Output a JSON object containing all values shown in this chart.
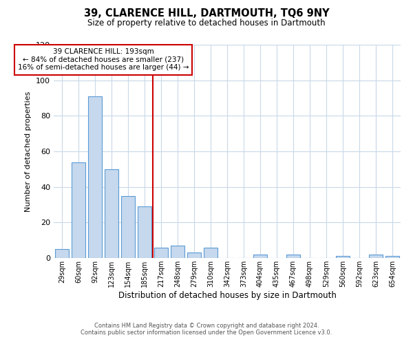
{
  "title": "39, CLARENCE HILL, DARTMOUTH, TQ6 9NY",
  "subtitle": "Size of property relative to detached houses in Dartmouth",
  "xlabel": "Distribution of detached houses by size in Dartmouth",
  "ylabel": "Number of detached properties",
  "bar_labels": [
    "29sqm",
    "60sqm",
    "92sqm",
    "123sqm",
    "154sqm",
    "185sqm",
    "217sqm",
    "248sqm",
    "279sqm",
    "310sqm",
    "342sqm",
    "373sqm",
    "404sqm",
    "435sqm",
    "467sqm",
    "498sqm",
    "529sqm",
    "560sqm",
    "592sqm",
    "623sqm",
    "654sqm"
  ],
  "bar_values": [
    5,
    54,
    91,
    50,
    35,
    29,
    6,
    7,
    3,
    6,
    0,
    0,
    2,
    0,
    2,
    0,
    0,
    1,
    0,
    2,
    1
  ],
  "bar_color": "#c5d8ed",
  "bar_edge_color": "#5b9bd5",
  "vline_index": 6,
  "vline_color": "#cc0000",
  "ylim": [
    0,
    120
  ],
  "yticks": [
    0,
    20,
    40,
    60,
    80,
    100,
    120
  ],
  "annotation_text": "39 CLARENCE HILL: 193sqm\n← 84% of detached houses are smaller (237)\n16% of semi-detached houses are larger (44) →",
  "annotation_box_color": "#ffffff",
  "annotation_box_edge": "#cc0000",
  "footer_line1": "Contains HM Land Registry data © Crown copyright and database right 2024.",
  "footer_line2": "Contains public sector information licensed under the Open Government Licence v3.0.",
  "background_color": "#ffffff",
  "grid_color": "#c8d8e8"
}
